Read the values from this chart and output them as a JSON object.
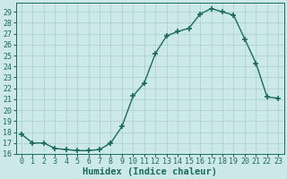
{
  "x": [
    0,
    1,
    2,
    3,
    4,
    5,
    6,
    7,
    8,
    9,
    10,
    11,
    12,
    13,
    14,
    15,
    16,
    17,
    18,
    19,
    20,
    21,
    22,
    23
  ],
  "y": [
    17.8,
    17.0,
    17.0,
    16.5,
    16.4,
    16.3,
    16.3,
    16.4,
    17.0,
    18.5,
    21.3,
    22.5,
    25.2,
    26.8,
    27.2,
    27.5,
    28.8,
    29.3,
    29.0,
    28.7,
    26.5,
    24.3,
    21.2,
    21.1
  ],
  "line_color": "#1a6b5a",
  "marker": "+",
  "marker_size": 4,
  "marker_lw": 1.2,
  "line_width": 1.0,
  "bg_color": "#cce8e8",
  "grid_color": "#a8cece",
  "xlabel": "Humidex (Indice chaleur)",
  "ylim_min": 16,
  "ylim_max": 29.8,
  "xlim_min": -0.5,
  "xlim_max": 23.5,
  "yticks": [
    16,
    17,
    18,
    19,
    20,
    21,
    22,
    23,
    24,
    25,
    26,
    27,
    28,
    29
  ],
  "xticks": [
    0,
    1,
    2,
    3,
    4,
    5,
    6,
    7,
    8,
    9,
    10,
    11,
    12,
    13,
    14,
    15,
    16,
    17,
    18,
    19,
    20,
    21,
    22,
    23
  ],
  "xlabel_fontsize": 7.5,
  "tick_fontsize": 6.0
}
